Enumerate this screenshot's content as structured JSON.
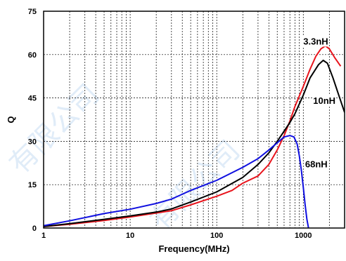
{
  "chart_data": {
    "type": "line",
    "xlabel": "Frequency(MHz)",
    "ylabel": "Q",
    "xscale": "log",
    "xlim": [
      1,
      3000
    ],
    "ylim": [
      0,
      75
    ],
    "grid": true,
    "x_ticks": [
      {
        "value": 1,
        "label": "1"
      },
      {
        "value": 10,
        "label": "10"
      },
      {
        "value": 100,
        "label": "100"
      },
      {
        "value": 1000,
        "label": "1000"
      }
    ],
    "y_ticks": [
      {
        "value": 0,
        "label": "0"
      },
      {
        "value": 15,
        "label": "15"
      },
      {
        "value": 30,
        "label": "30"
      },
      {
        "value": 45,
        "label": "45"
      },
      {
        "value": 60,
        "label": "60"
      },
      {
        "value": 75,
        "label": "75"
      }
    ],
    "series": [
      {
        "name": "3.3nH",
        "color": "#e8141c",
        "label_x": 1000,
        "label_y": 63.5,
        "points": [
          [
            1,
            0.5
          ],
          [
            2,
            1.3
          ],
          [
            5,
            2.6
          ],
          [
            10,
            3.8
          ],
          [
            20,
            5.2
          ],
          [
            30,
            6.0
          ],
          [
            50,
            8.0
          ],
          [
            100,
            11.0
          ],
          [
            150,
            13.0
          ],
          [
            200,
            15.5
          ],
          [
            300,
            18.0
          ],
          [
            400,
            22.0
          ],
          [
            500,
            27.0
          ],
          [
            600,
            32.0
          ],
          [
            700,
            37.0
          ],
          [
            800,
            42.0
          ],
          [
            1000,
            49.0
          ],
          [
            1200,
            55.0
          ],
          [
            1400,
            59.5
          ],
          [
            1600,
            62.0
          ],
          [
            1800,
            63.0
          ],
          [
            2000,
            62.0
          ],
          [
            2300,
            59.0
          ],
          [
            2700,
            56.0
          ]
        ]
      },
      {
        "name": "10nH",
        "color": "#000000",
        "label_x": 1300,
        "label_y": 43,
        "points": [
          [
            1,
            0.5
          ],
          [
            2,
            1.5
          ],
          [
            5,
            3.0
          ],
          [
            10,
            4.2
          ],
          [
            20,
            5.5
          ],
          [
            30,
            6.6
          ],
          [
            50,
            9.0
          ],
          [
            100,
            12.5
          ],
          [
            200,
            17.5
          ],
          [
            300,
            22.0
          ],
          [
            400,
            26.0
          ],
          [
            500,
            30.0
          ],
          [
            600,
            33.5
          ],
          [
            700,
            36.5
          ],
          [
            800,
            39.5
          ],
          [
            1000,
            46.0
          ],
          [
            1200,
            52.0
          ],
          [
            1500,
            56.5
          ],
          [
            1700,
            58.0
          ],
          [
            1900,
            57.0
          ],
          [
            2200,
            52.0
          ],
          [
            2500,
            47.0
          ],
          [
            3000,
            40.0
          ]
        ]
      },
      {
        "name": "68nH",
        "color": "#1010e0",
        "label_x": 1050,
        "label_y": 21,
        "points": [
          [
            1,
            0.8
          ],
          [
            2,
            2.5
          ],
          [
            5,
            5.0
          ],
          [
            10,
            6.5
          ],
          [
            20,
            8.5
          ],
          [
            30,
            10.0
          ],
          [
            50,
            13.0
          ],
          [
            100,
            16.5
          ],
          [
            200,
            21.0
          ],
          [
            300,
            24.0
          ],
          [
            400,
            27.0
          ],
          [
            500,
            29.5
          ],
          [
            600,
            31.5
          ],
          [
            700,
            32.0
          ],
          [
            780,
            31.5
          ],
          [
            850,
            29.0
          ],
          [
            900,
            25.0
          ],
          [
            950,
            20.0
          ],
          [
            1000,
            14.0
          ],
          [
            1050,
            8.0
          ],
          [
            1100,
            3.0
          ],
          [
            1150,
            0.0
          ]
        ]
      }
    ]
  }
}
